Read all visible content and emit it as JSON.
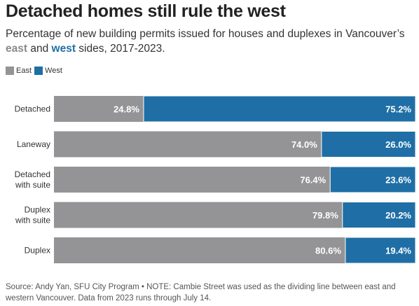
{
  "title": "Detached homes still rule the west",
  "subtitle": {
    "before": "Percentage of new building permits issued for houses and duplexes in Vancouver’s ",
    "east": "east",
    "and": " and ",
    "west": "west",
    "after": " sides, 2017-2023."
  },
  "legend": {
    "east_label": "East",
    "west_label": "West"
  },
  "colors": {
    "east": "#949497",
    "west": "#1f6fa6"
  },
  "source": "Source: Andy Yan, SFU City Program • NOTE: Cambie Street was used as the dividing line between east and western Vancouver. Data from 2023 runs through July 14.",
  "chart_data": {
    "type": "bar",
    "orientation": "horizontal",
    "stacked": true,
    "categories": [
      [
        "Detached"
      ],
      [
        "Laneway"
      ],
      [
        "Detached",
        "with suite"
      ],
      [
        "Duplex",
        "with suite"
      ],
      [
        "Duplex"
      ]
    ],
    "series": [
      {
        "name": "East",
        "values": [
          24.8,
          74.0,
          76.4,
          79.8,
          80.6
        ],
        "labels": [
          "24.8%",
          "74.0%",
          "76.4%",
          "79.8%",
          "80.6%"
        ]
      },
      {
        "name": "West",
        "values": [
          75.2,
          26.0,
          23.6,
          20.2,
          19.4
        ],
        "labels": [
          "75.2%",
          "26.0%",
          "23.6%",
          "20.2%",
          "19.4%"
        ]
      }
    ],
    "xlim": [
      0,
      100
    ],
    "grid": false,
    "legend_position": "top-left"
  }
}
